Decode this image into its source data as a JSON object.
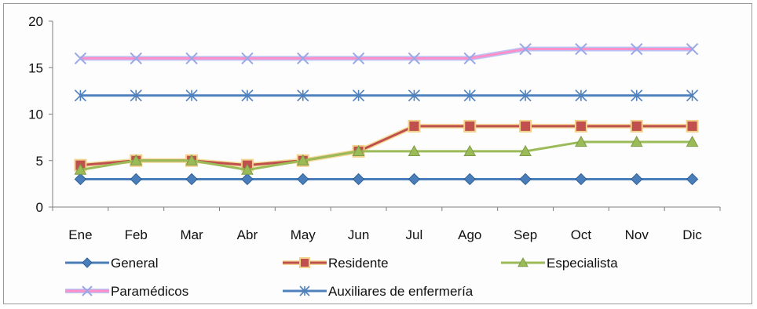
{
  "chart_data": {
    "type": "line",
    "title": "",
    "xlabel": "",
    "ylabel": "",
    "ylim": [
      0,
      20
    ],
    "yticks": [
      0,
      5,
      10,
      15,
      20
    ],
    "grid": false,
    "legend_position": "bottom",
    "categories": [
      "Ene",
      "Feb",
      "Mar",
      "Abr",
      "May",
      "Jun",
      "Jul",
      "Ago",
      "Sep",
      "Oct",
      "Nov",
      "Dic"
    ],
    "series": [
      {
        "name": "General",
        "color": "#4a7ebb",
        "marker": "diamond",
        "values": [
          3,
          3,
          3,
          3,
          3,
          3,
          3,
          3,
          3,
          3,
          3,
          3
        ]
      },
      {
        "name": "Residente",
        "color": "#c0504d",
        "marker": "square",
        "values": [
          4.5,
          5,
          5,
          4.5,
          5,
          6,
          8.7,
          8.7,
          8.7,
          8.7,
          8.7,
          8.7
        ]
      },
      {
        "name": "Especialista",
        "color": "#9bbb59",
        "marker": "triangle",
        "values": [
          4,
          5,
          5,
          4,
          5,
          6,
          6,
          6,
          6,
          7,
          7,
          7
        ]
      },
      {
        "name": "Paramédicos",
        "color": "#ff8fc8",
        "marker": "x",
        "values": [
          16,
          16,
          16,
          16,
          16,
          16,
          16,
          16,
          17,
          17,
          17,
          17
        ]
      },
      {
        "name": "Auxiliares de enfermería",
        "color": "#4f81bd",
        "marker": "star",
        "values": [
          12,
          12,
          12,
          12,
          12,
          12,
          12,
          12,
          12,
          12,
          12,
          12
        ]
      }
    ]
  }
}
